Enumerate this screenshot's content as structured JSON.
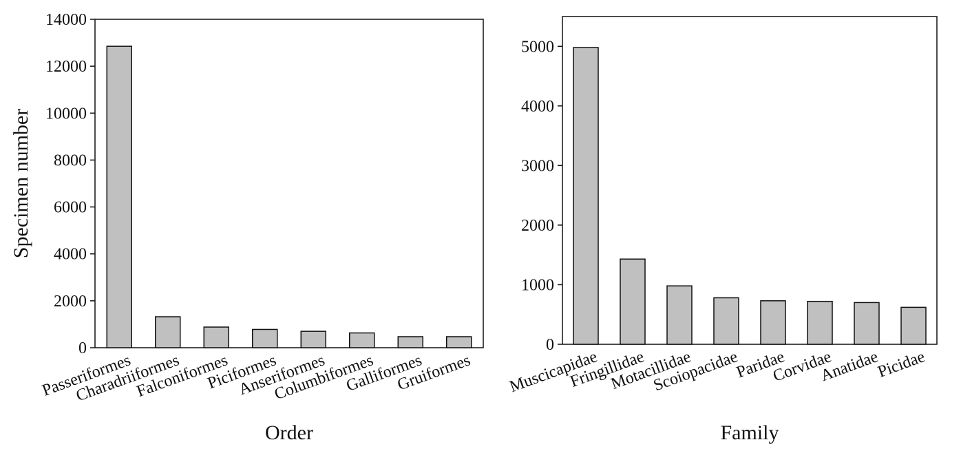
{
  "chart_data": [
    {
      "type": "bar",
      "categories": [
        "Passeriformes",
        "Charadriiformes",
        "Falconiformes",
        "Piciformes",
        "Anseriformes",
        "Columbiformes",
        "Galliformes",
        "Gruiformes"
      ],
      "values": [
        12850,
        1320,
        880,
        780,
        700,
        630,
        470,
        470
      ],
      "xlabel": "Order",
      "ylabel": "Specimen number",
      "ylim": [
        0,
        14000
      ],
      "yticks": [
        "0",
        "2000",
        "4000",
        "6000",
        "8000",
        "10000",
        "12000",
        "14000"
      ],
      "grid": false
    },
    {
      "type": "bar",
      "categories": [
        "Muscicapidae",
        "Fringillidae",
        "Motacillidae",
        "Scoiopacidae",
        "Paridae",
        "Corvidae",
        "Anatidae",
        "Picidae"
      ],
      "values": [
        4980,
        1430,
        980,
        780,
        730,
        720,
        700,
        620
      ],
      "xlabel": "Family",
      "ylabel": "",
      "ylim": [
        0,
        5500
      ],
      "yticks": [
        "0",
        "1000",
        "2000",
        "3000",
        "4000",
        "5000"
      ],
      "grid": false
    }
  ]
}
